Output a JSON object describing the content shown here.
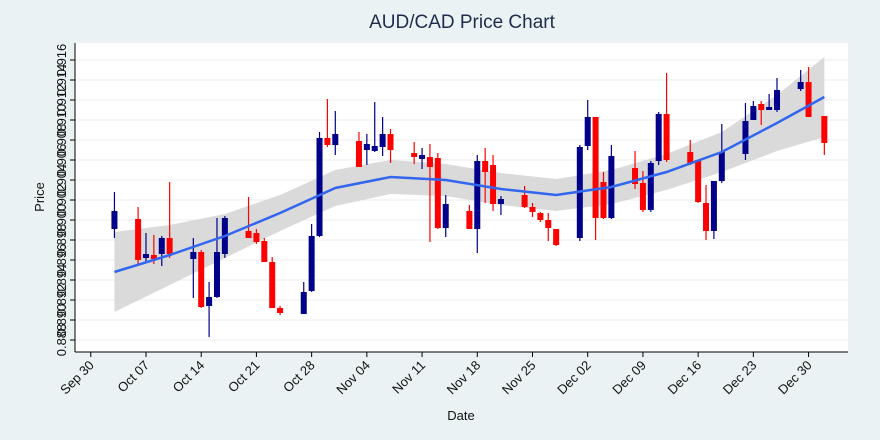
{
  "chart_data": {
    "type": "candlestick",
    "title": "AUD/CAD Price Chart",
    "x_label": "Date",
    "y_label": "Price",
    "x": [
      "Oct 03",
      "Oct 06",
      "Oct 07",
      "Oct 08",
      "Oct 09",
      "Oct 10",
      "Oct 13",
      "Oct 14",
      "Oct 15",
      "Oct 16",
      "Oct 17",
      "Oct 20",
      "Oct 21",
      "Oct 22",
      "Oct 23",
      "Oct 24",
      "Oct 27",
      "Oct 28",
      "Oct 29",
      "Oct 30",
      "Oct 31",
      "Nov 03",
      "Nov 04",
      "Nov 05",
      "Nov 06",
      "Nov 07",
      "Nov 10",
      "Nov 11",
      "Nov 12",
      "Nov 13",
      "Nov 14",
      "Nov 17",
      "Nov 18",
      "Nov 19",
      "Nov 20",
      "Nov 21",
      "Nov 24",
      "Nov 25",
      "Nov 26",
      "Nov 27",
      "Nov 28",
      "Dec 01",
      "Dec 02",
      "Dec 03",
      "Dec 04",
      "Dec 05",
      "Dec 08",
      "Dec 09",
      "Dec 10",
      "Dec 11",
      "Dec 12",
      "Dec 15",
      "Dec 16",
      "Dec 17",
      "Dec 18",
      "Dec 19",
      "Dec 22",
      "Dec 23",
      "Dec 24",
      "Dec 25",
      "Dec 26",
      "Dec 29",
      "Dec 30",
      "Jan 01"
    ],
    "open": [
      0.8991,
      0.9001,
      0.8962,
      0.8965,
      0.8966,
      0.8982,
      0.8961,
      0.8968,
      0.8914,
      0.8923,
      0.8966,
      0.8989,
      0.8987,
      0.8979,
      0.8958,
      0.8912,
      0.8906,
      0.8929,
      0.8984,
      0.9082,
      0.9075,
      0.9079,
      0.907,
      0.9069,
      0.9073,
      0.9086,
      0.9067,
      0.9061,
      0.9063,
      0.9062,
      0.8992,
      0.9009,
      0.8991,
      0.9059,
      0.9055,
      0.9016,
      0.9025,
      0.9013,
      0.9007,
      0.9,
      0.8991,
      0.8982,
      0.9074,
      0.9103,
      0.9038,
      0.9002,
      0.9052,
      0.9037,
      0.901,
      0.9059,
      0.9106,
      0.9068,
      0.906,
      0.9017,
      0.8989,
      0.9039,
      0.9066,
      0.91,
      0.9116,
      0.911,
      0.911,
      0.9131,
      0.9138,
      0.9104
    ],
    "high": [
      0.9028,
      0.9013,
      0.8987,
      0.8985,
      0.8984,
      0.9038,
      0.8982,
      0.897,
      0.8938,
      0.9002,
      0.9004,
      0.9023,
      0.8991,
      0.8982,
      0.8963,
      0.8914,
      0.8938,
      0.8996,
      0.9088,
      0.9121,
      0.9109,
      0.9088,
      0.9086,
      0.9118,
      0.9103,
      0.9091,
      0.9078,
      0.9072,
      0.9076,
      0.9067,
      0.9025,
      0.9015,
      0.9065,
      0.9072,
      0.9065,
      0.9024,
      0.9034,
      0.9017,
      0.9008,
      0.9007,
      0.8991,
      0.9075,
      0.912,
      0.9103,
      0.9048,
      0.9075,
      0.9069,
      0.9049,
      0.9059,
      0.9108,
      0.9147,
      0.908,
      0.906,
      0.9035,
      0.9039,
      0.9096,
      0.9117,
      0.9119,
      0.9119,
      0.9126,
      0.9142,
      0.915,
      0.9153,
      0.9104
    ],
    "low": [
      0.8982,
      0.8954,
      0.8958,
      0.8956,
      0.8954,
      0.8962,
      0.8922,
      0.8912,
      0.8883,
      0.8922,
      0.8962,
      0.8982,
      0.8976,
      0.8958,
      0.8912,
      0.8905,
      0.8906,
      0.8928,
      0.8983,
      0.9073,
      0.9065,
      0.9053,
      0.9055,
      0.9068,
      0.9064,
      0.9057,
      0.9056,
      0.9051,
      0.8978,
      0.8991,
      0.8983,
      0.8991,
      0.8967,
      0.9017,
      0.9009,
      0.9005,
      0.9012,
      0.9003,
      0.8998,
      0.8979,
      0.8974,
      0.8979,
      0.907,
      0.898,
      0.9001,
      0.9001,
      0.9031,
      0.9008,
      0.9008,
      0.9055,
      0.9058,
      0.9055,
      0.9017,
      0.898,
      0.8981,
      0.9037,
      0.906,
      0.91,
      0.9095,
      0.911,
      0.9108,
      0.9129,
      0.9103,
      0.9065
    ],
    "close": [
      0.9009,
      0.896,
      0.8966,
      0.8961,
      0.8982,
      0.8966,
      0.8968,
      0.8913,
      0.8923,
      0.8968,
      0.9002,
      0.8982,
      0.8978,
      0.8958,
      0.8912,
      0.8907,
      0.8928,
      0.8984,
      0.9082,
      0.9075,
      0.9086,
      0.9053,
      0.9076,
      0.9074,
      0.9086,
      0.907,
      0.9063,
      0.9065,
      0.9053,
      0.8992,
      0.9016,
      0.8991,
      0.9059,
      0.9048,
      0.9016,
      0.9021,
      0.9013,
      0.9008,
      0.9,
      0.8992,
      0.8975,
      0.9073,
      0.9103,
      0.9002,
      0.9002,
      0.9064,
      0.9036,
      0.901,
      0.9057,
      0.9106,
      0.906,
      0.9057,
      0.9018,
      0.8989,
      0.9039,
      0.9068,
      0.9099,
      0.9114,
      0.911,
      0.9113,
      0.913,
      0.9138,
      0.9103,
      0.9077
    ],
    "up_color": "#00008b",
    "down_color": "#ff0000",
    "trend": {
      "color": "#3366ee",
      "band_color": "#d3d3d3",
      "x": [
        "Oct 03",
        "Oct 10",
        "Oct 17",
        "Oct 24",
        "Oct 31",
        "Nov 07",
        "Nov 14",
        "Nov 21",
        "Nov 28",
        "Dec 05",
        "Dec 12",
        "Dec 19",
        "Dec 26",
        "Jan 01"
      ],
      "values": [
        0.8948,
        0.8965,
        0.8984,
        0.9007,
        0.9032,
        0.9043,
        0.904,
        0.9031,
        0.9025,
        0.9033,
        0.9048,
        0.9068,
        0.9097,
        0.9123
      ],
      "lower": [
        0.8908,
        0.8935,
        0.8962,
        0.8989,
        0.9014,
        0.9026,
        0.9024,
        0.9015,
        0.9009,
        0.9016,
        0.903,
        0.9048,
        0.9069,
        0.9083
      ],
      "upper": [
        0.8988,
        0.8995,
        0.9006,
        0.9025,
        0.905,
        0.906,
        0.9056,
        0.9047,
        0.9041,
        0.905,
        0.9066,
        0.9088,
        0.9125,
        0.9163
      ]
    },
    "xlim": [
      "Sep 28",
      "Jan 04"
    ],
    "xticks": [
      "Sep 30",
      "Oct 07",
      "Oct 14",
      "Oct 21",
      "Oct 28",
      "Nov 04",
      "Nov 11",
      "Nov 18",
      "Nov 25",
      "Dec 02",
      "Dec 09",
      "Dec 16",
      "Dec 23",
      "Dec 30"
    ],
    "ylim": [
      0.8868,
      0.9177
    ],
    "yticks": [
      0.888,
      {
        "value": 0.89,
        "label": "0.890"
      },
      0.892,
      0.894,
      0.896,
      0.898,
      {
        "value": 0.9,
        "label": "0.900"
      },
      0.902,
      0.904,
      0.906,
      0.908,
      {
        "value": 0.91,
        "label": "0.910"
      },
      0.912,
      0.914,
      0.916
    ],
    "grid": true
  }
}
